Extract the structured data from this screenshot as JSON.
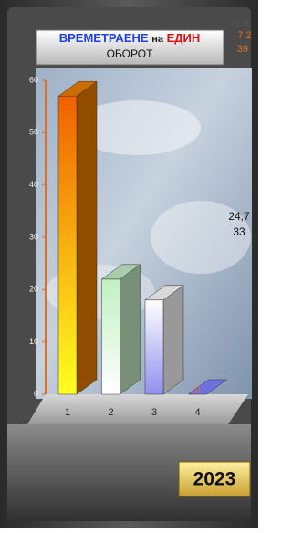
{
  "chart_data": {
    "type": "bar3d",
    "title": [
      "ВРЕМЕТРАЕНЕ",
      "на",
      "ЕДИН",
      "ОБОРОТ"
    ],
    "categories": [
      "1",
      "2",
      "3",
      "4"
    ],
    "values": [
      57,
      22,
      18,
      0
    ],
    "colors": [
      "#f08000",
      "#c8f0c8",
      "#ffffff",
      "#7070e0"
    ],
    "ylim": [
      0,
      60
    ],
    "yticks": [
      0,
      10,
      20,
      30,
      40,
      50,
      60
    ],
    "annotations": [
      "21.2",
      "7.2",
      "39",
      "24,7",
      "33"
    ],
    "badge": "2023"
  }
}
